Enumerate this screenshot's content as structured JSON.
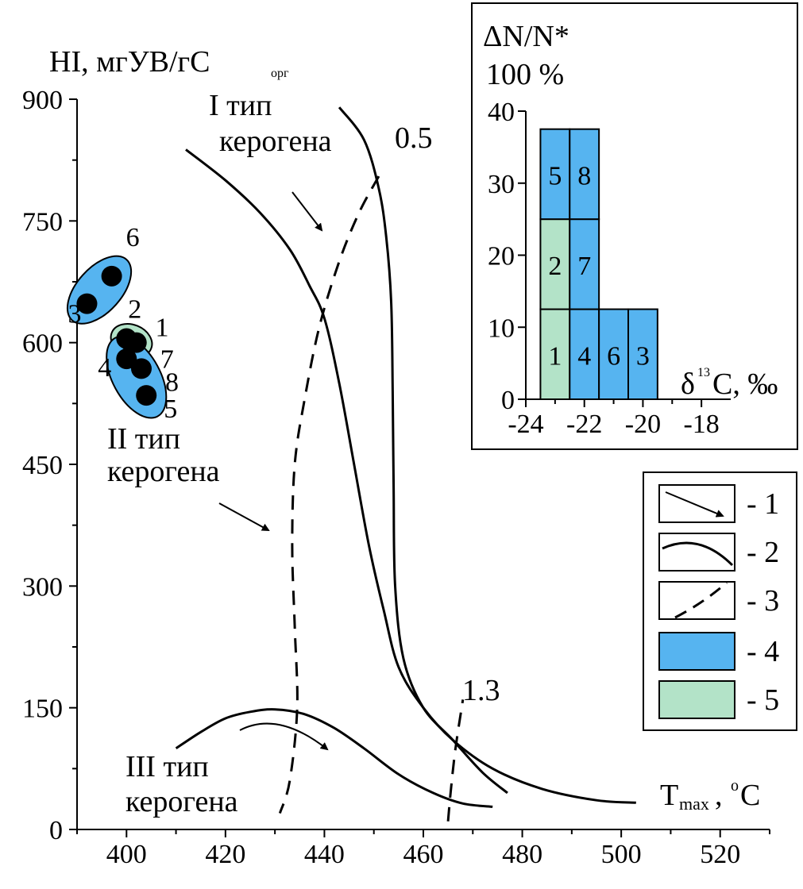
{
  "colors": {
    "blue": "#56B4F0",
    "green": "#B3E3C8",
    "line": "#000000"
  },
  "main": {
    "ylabel_main": "HI, мгУВ/гС",
    "ylabel_sub": "орг",
    "xlabel_main": "T",
    "xlabel_sub": "max",
    "xlabel_unit": ", ",
    "xlabel_deg": "o",
    "xlabel_c": "C"
  },
  "labels": {
    "type1_line1": "I тип",
    "type1_line2": "керогена",
    "type2_line1": "II тип",
    "type2_line2": "керогена",
    "type3_line1": "III тип",
    "type3_line2": "керогена",
    "iso_05": "0.5",
    "iso_13": "1.3"
  },
  "inset": {
    "ylabel_line1": "ΔN/N*",
    "ylabel_line2": "100 %",
    "xlabel_delta": "δ",
    "xlabel_sup": "13",
    "xlabel_rest": "C, ‰"
  },
  "legend": [
    {
      "text": "- 1",
      "icon": "arrow-icon"
    },
    {
      "text": "- 2",
      "icon": "curve-icon"
    },
    {
      "text": "- 3",
      "icon": "dashed-line-icon"
    },
    {
      "text": "- 4",
      "icon": "blue-box-icon"
    },
    {
      "text": "- 5",
      "icon": "green-box-icon"
    }
  ],
  "chart_data": [
    {
      "type": "scatter",
      "x_axis": {
        "label": "Tmax, °C",
        "range": [
          390,
          530
        ],
        "ticks": [
          400,
          420,
          440,
          460,
          480,
          500,
          520
        ]
      },
      "y_axis": {
        "label": "HI, мгУВ/гСорг",
        "range": [
          0,
          900
        ],
        "ticks": [
          0,
          150,
          300,
          450,
          600,
          750,
          900
        ]
      },
      "points": [
        {
          "id": "1",
          "x": 401,
          "y": 600,
          "group": 5
        },
        {
          "id": "2",
          "x": 400,
          "y": 605,
          "group": 5
        },
        {
          "id": "3",
          "x": 392,
          "y": 648,
          "group": 4
        },
        {
          "id": "4",
          "x": 400,
          "y": 580,
          "group": 4
        },
        {
          "id": "5",
          "x": 404,
          "y": 535,
          "group": 4
        },
        {
          "id": "6",
          "x": 397,
          "y": 682,
          "group": 4
        },
        {
          "id": "7",
          "x": 402,
          "y": 600,
          "group": 4
        },
        {
          "id": "8",
          "x": 403,
          "y": 568,
          "group": 4
        }
      ],
      "kerogen_curves": [
        {
          "name": "I тип керогена",
          "x": [
            443,
            448,
            451,
            452.5,
            453.5,
            453.8,
            454,
            454.3,
            456,
            460,
            466,
            472,
            477
          ],
          "y": [
            890,
            850,
            790,
            730,
            650,
            540,
            420,
            300,
            210,
            150,
            110,
            70,
            45
          ]
        },
        {
          "name": "II тип керогена",
          "x": [
            412,
            420,
            427,
            433,
            437,
            440,
            443,
            446,
            449,
            452,
            455,
            460,
            466,
            474,
            484,
            495,
            503
          ],
          "y": [
            838,
            800,
            760,
            715,
            670,
            630,
            550,
            450,
            350,
            270,
            200,
            150,
            110,
            75,
            50,
            36,
            33
          ]
        },
        {
          "name": "III тип керогена",
          "x": [
            410,
            415,
            420,
            425,
            430,
            436,
            442,
            448,
            455,
            462,
            468,
            474
          ],
          "y": [
            100,
            120,
            137,
            145,
            148,
            142,
            125,
            100,
            68,
            45,
            32,
            28
          ]
        }
      ],
      "iso_lines": [
        {
          "name": "0.5",
          "x": [
            451,
            447,
            443,
            439,
            436,
            434,
            433.5,
            434,
            434.5,
            433,
            431
          ],
          "y": [
            805,
            760,
            700,
            620,
            530,
            450,
            350,
            250,
            150,
            60,
            20
          ]
        },
        {
          "name": "1.3",
          "x": [
            465,
            465.5,
            466.5,
            468
          ],
          "y": [
            10,
            45,
            100,
            160
          ]
        }
      ]
    },
    {
      "type": "bar",
      "xlabel": "δ13C, ‰",
      "ylabel": "ΔN/N* 100 %",
      "x_ticks": [
        -24,
        -22,
        -20,
        -18
      ],
      "y_ticks": [
        0,
        10,
        20,
        30,
        40
      ],
      "xlim": [
        -24,
        -17
      ],
      "ylim": [
        0,
        40
      ],
      "cells": [
        {
          "label": "1",
          "x": [
            -23.5,
            -22.5
          ],
          "y": [
            0,
            12.5
          ],
          "group": 5
        },
        {
          "label": "2",
          "x": [
            -23.5,
            -22.5
          ],
          "y": [
            12.5,
            25
          ],
          "group": 5
        },
        {
          "label": "5",
          "x": [
            -23.5,
            -22.5
          ],
          "y": [
            25,
            37.5
          ],
          "group": 4
        },
        {
          "label": "4",
          "x": [
            -22.5,
            -21.5
          ],
          "y": [
            0,
            12.5
          ],
          "group": 4
        },
        {
          "label": "7",
          "x": [
            -22.5,
            -21.5
          ],
          "y": [
            12.5,
            25
          ],
          "group": 4
        },
        {
          "label": "8",
          "x": [
            -22.5,
            -21.5
          ],
          "y": [
            25,
            37.5
          ],
          "group": 4
        },
        {
          "label": "6",
          "x": [
            -21.5,
            -20.5
          ],
          "y": [
            0,
            12.5
          ],
          "group": 4
        },
        {
          "label": "3",
          "x": [
            -20.5,
            -19.5
          ],
          "y": [
            0,
            12.5
          ],
          "group": 4
        }
      ]
    }
  ]
}
